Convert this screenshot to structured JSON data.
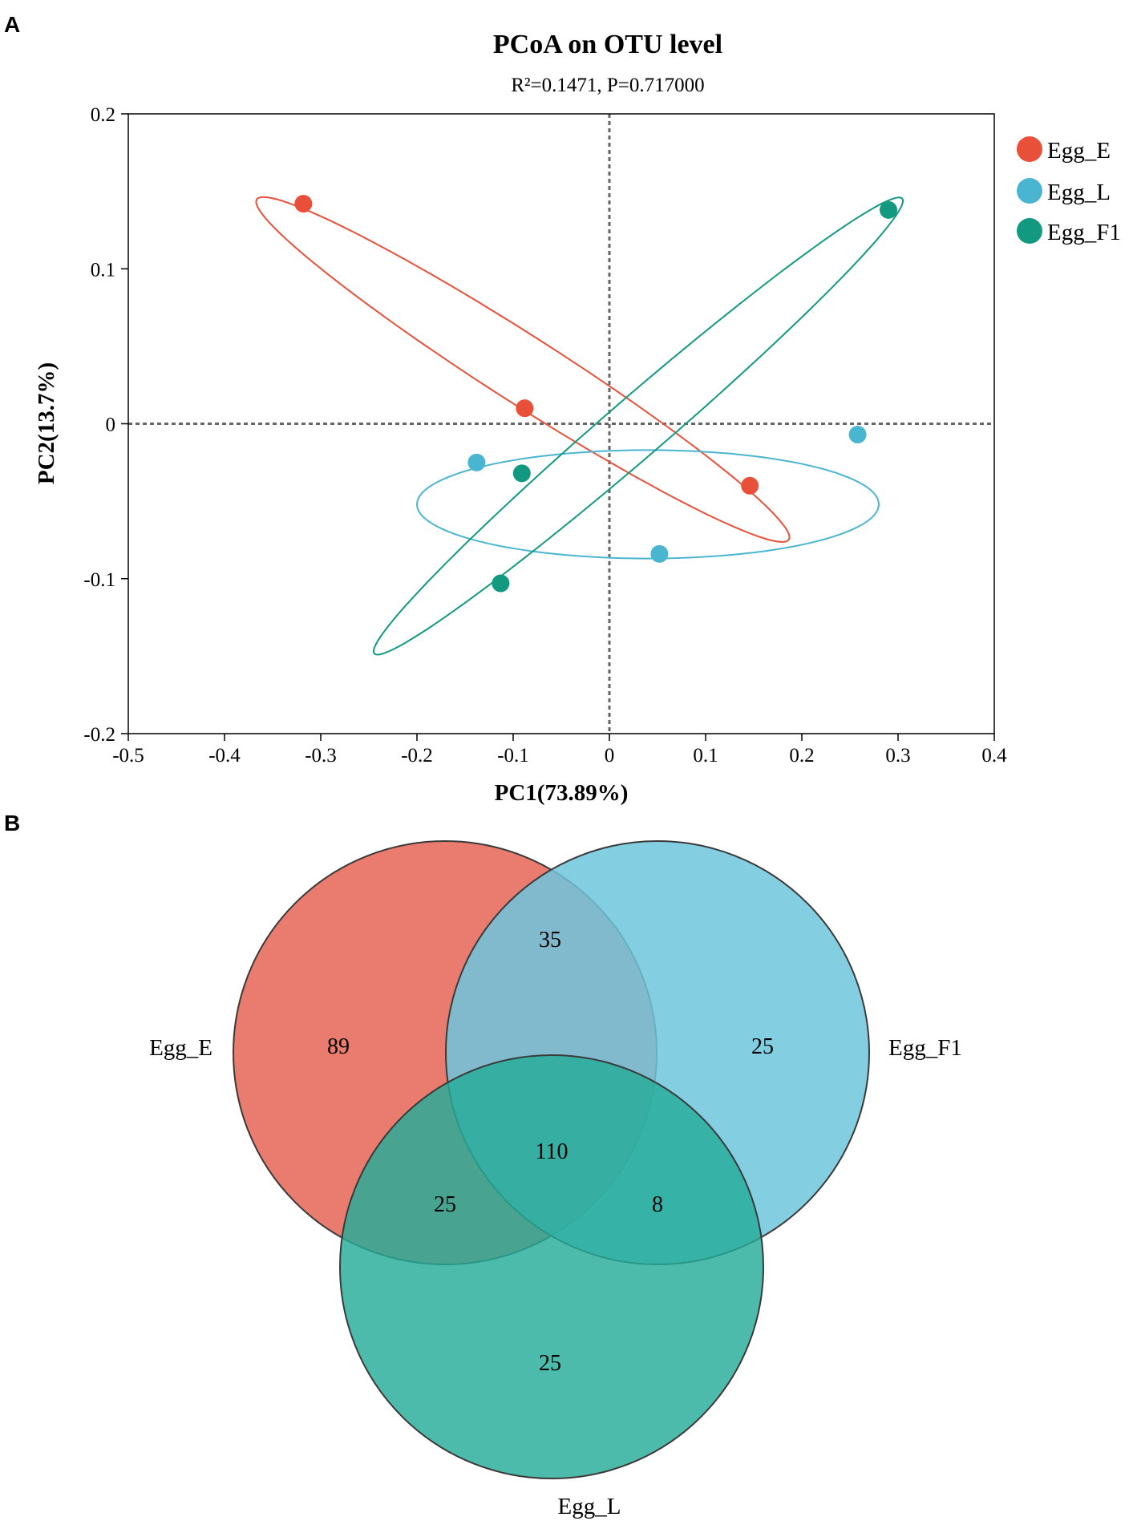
{
  "panels": {
    "a": "A",
    "b": "B"
  },
  "chart_data": [
    {
      "type": "scatter",
      "title": "PCoA on OTU level",
      "subtitle": "R²=0.1471, P=0.717000",
      "xlabel": "PC1(73.89%)",
      "ylabel": "PC2(13.7%)",
      "xlim": [
        -0.5,
        0.4
      ],
      "ylim": [
        -0.2,
        0.2
      ],
      "xticks": [
        -0.5,
        -0.4,
        -0.3,
        -0.2,
        -0.1,
        0,
        0.1,
        0.2,
        0.3,
        0.4
      ],
      "yticks": [
        -0.2,
        -0.1,
        0,
        0.1,
        0.2
      ],
      "xtick_labels": [
        "-0.5",
        "-0.4",
        "-0.3",
        "-0.2",
        "-0.1",
        "0",
        "0.1",
        "0.2",
        "0.3",
        "0.4"
      ],
      "ytick_labels": [
        "-0.2",
        "-0.1",
        "0",
        "0.1",
        "0.2"
      ],
      "grid": false,
      "zero_lines": true,
      "legend_position": "top-right",
      "series": [
        {
          "name": "Egg_E",
          "color": "#e8503a",
          "points": [
            [
              -0.318,
              0.142
            ],
            [
              -0.088,
              0.01
            ],
            [
              0.146,
              -0.04
            ]
          ],
          "ellipse": {
            "center": [
              -0.09,
              0.035
            ],
            "semi_major_data": [
              0.277,
              -0.109
            ],
            "semi_minor_data": [
              0.0086,
              0.0225
            ]
          }
        },
        {
          "name": "Egg_L",
          "color": "#4ab5d1",
          "points": [
            [
              -0.138,
              -0.025
            ],
            [
              0.052,
              -0.084
            ],
            [
              0.258,
              -0.007
            ]
          ],
          "ellipse": {
            "center": [
              0.04,
              -0.052
            ],
            "semi_major_data": [
              0.24,
              0.0
            ],
            "semi_minor_data": [
              0.0,
              0.035
            ]
          }
        },
        {
          "name": "Egg_F1",
          "color": "#12997f",
          "points": [
            [
              -0.091,
              -0.032
            ],
            [
              -0.113,
              -0.103
            ],
            [
              0.29,
              0.138
            ]
          ],
          "ellipse": {
            "center": [
              0.03,
              -0.0015
            ],
            "semi_major_data": [
              0.275,
              0.146
            ],
            "semi_minor_data": [
              0.00685,
              -0.0214
            ]
          }
        }
      ]
    },
    {
      "type": "venn",
      "sets": [
        {
          "name": "Egg_E",
          "color": "#e66a5a"
        },
        {
          "name": "Egg_F1",
          "color": "#6ec6dd"
        },
        {
          "name": "Egg_L",
          "color": "#26ac98"
        }
      ],
      "regions": {
        "Egg_E_only": "89",
        "Egg_F1_only": "25",
        "Egg_L_only": "25",
        "Egg_E_and_Egg_F1": "35",
        "Egg_E_and_Egg_L": "25",
        "Egg_F1_and_Egg_L": "8",
        "all_three": "110"
      }
    }
  ]
}
